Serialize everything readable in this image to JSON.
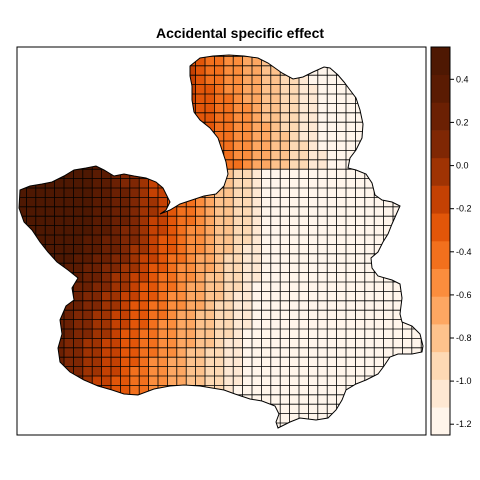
{
  "title": "Accidental specific effect",
  "legend": {
    "ticks": [
      {
        "value": 0.4,
        "label": "0.4"
      },
      {
        "value": 0.2,
        "label": "0.2"
      },
      {
        "value": 0.0,
        "label": "0.0"
      },
      {
        "value": -0.2,
        "label": "-0.2"
      },
      {
        "value": -0.4,
        "label": "-0.4"
      },
      {
        "value": -0.6,
        "label": "-0.6"
      },
      {
        "value": -0.8,
        "label": "-0.8"
      },
      {
        "value": -1.0,
        "label": "-1.0"
      },
      {
        "value": -1.2,
        "label": "-1.2"
      }
    ],
    "range": [
      -1.25,
      0.55
    ],
    "colors": [
      "#fff5eb",
      "#fee8d3",
      "#fdd9b4",
      "#fdc28c",
      "#fda762",
      "#fb8d3d",
      "#f2701d",
      "#e25609",
      "#c44103",
      "#9f3303",
      "#7f2704",
      "#6b2003",
      "#5a1b02",
      "#4e1802"
    ]
  },
  "chart_data": {
    "type": "heatmap",
    "title": "Accidental specific effect",
    "value_range": [
      -1.2,
      0.5
    ],
    "colorbar_ticks": [
      0.4,
      0.2,
      0.0,
      -0.2,
      -0.4,
      -0.6,
      -0.8,
      -1.0,
      -1.2
    ],
    "pattern": "highest values (about 0.5) in the north-west lobe, decreasing toward the east and south-east (about -1.2)"
  }
}
